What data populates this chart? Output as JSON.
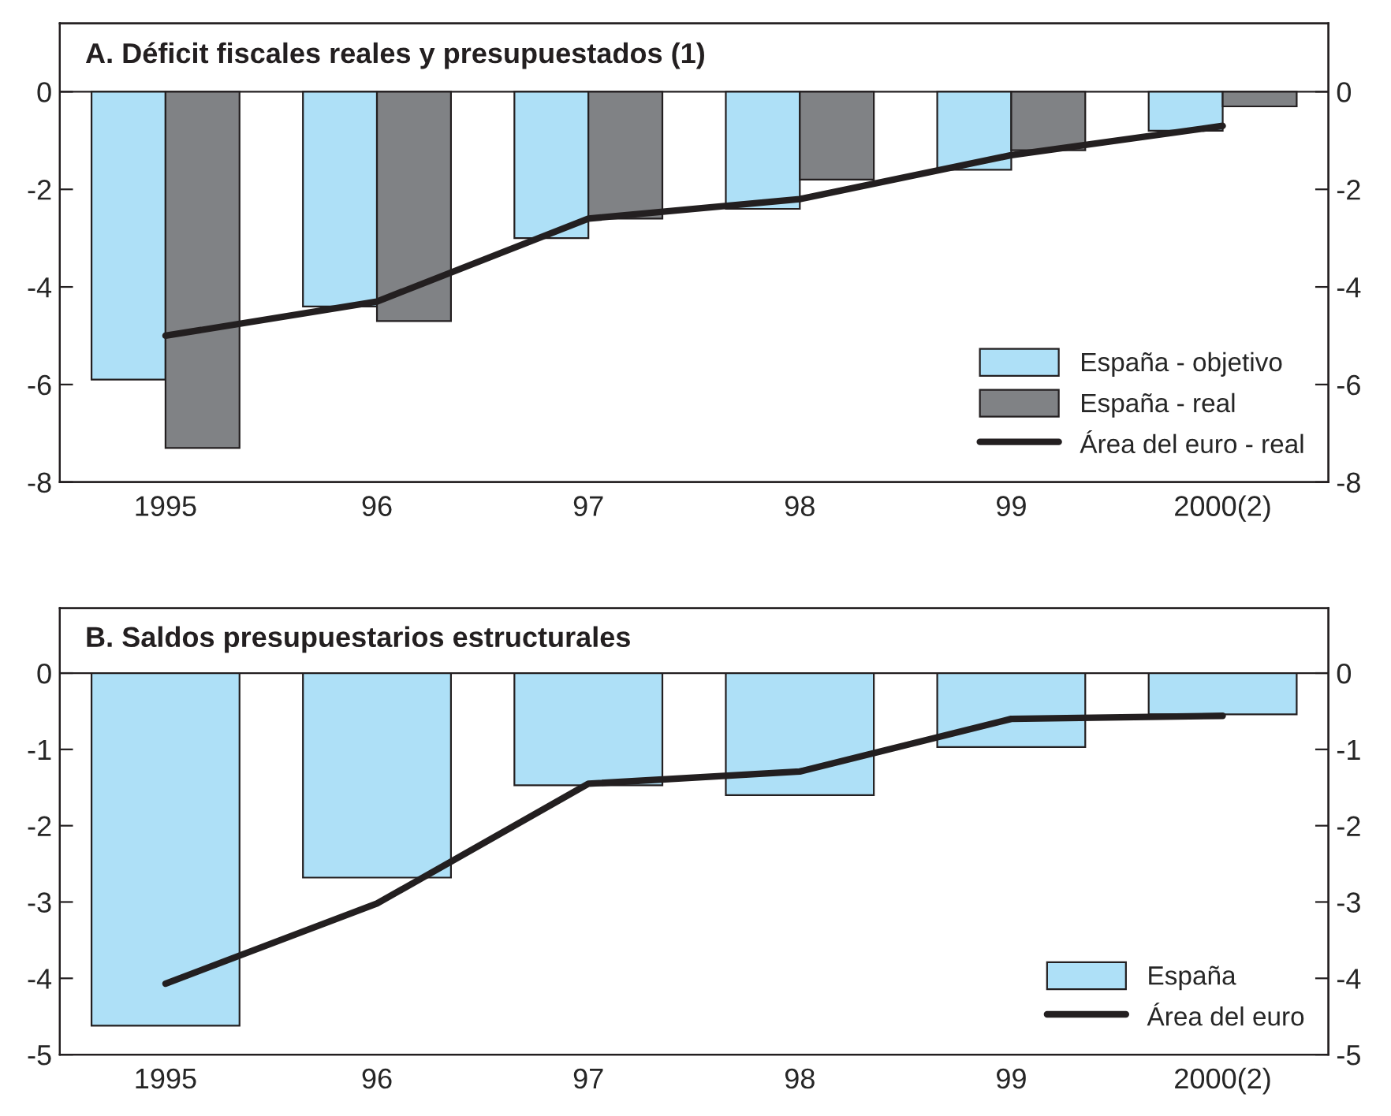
{
  "chart_data": [
    {
      "type": "bar",
      "title": "A. Déficit fiscales reales y presupuestados (1)",
      "categories": [
        "1995",
        "96",
        "97",
        "98",
        "99",
        "2000(2)"
      ],
      "series": [
        {
          "name": "España - objetivo",
          "color": "#aee0f7",
          "values": [
            -5.9,
            -4.4,
            -3.0,
            -2.4,
            -1.6,
            -0.8
          ]
        },
        {
          "name": "España - real",
          "color": "#808285",
          "values": [
            -7.3,
            -4.7,
            -2.6,
            -1.8,
            -1.2,
            -0.3
          ]
        },
        {
          "name": "Área del euro - real",
          "type": "line",
          "color": "#231f20",
          "values": [
            -5.0,
            -4.3,
            -2.6,
            -2.2,
            -1.3,
            -0.7
          ]
        }
      ],
      "ylim": [
        -8,
        1.4
      ],
      "yticks": [
        -8,
        -6,
        -4,
        -2,
        0
      ],
      "y2lim": [
        -8,
        1.4
      ],
      "y2ticks": [
        -8,
        -6,
        -4,
        -2,
        0
      ],
      "legend": "bottom right",
      "ref_lines": [
        {
          "axis": "y",
          "value": 0,
          "color": "#231f20"
        }
      ]
    },
    {
      "type": "bar",
      "title": "B. Saldos presupuestarios estructurales",
      "categories": [
        "1995",
        "96",
        "97",
        "98",
        "99",
        "2000(2)"
      ],
      "series": [
        {
          "name": "España",
          "color": "#aee0f7",
          "values": [
            -4.62,
            -2.68,
            -1.47,
            -1.6,
            -0.97,
            -0.54
          ]
        },
        {
          "name": "Área del euro",
          "type": "line",
          "color": "#231f20",
          "values": [
            -4.07,
            -3.02,
            -1.45,
            -1.29,
            -0.6,
            -0.56
          ]
        }
      ],
      "ylim": [
        -5,
        0.85
      ],
      "yticks": [
        -5,
        -4,
        -3,
        -2,
        -1,
        0
      ],
      "y2lim": [
        -5,
        0.85
      ],
      "y2ticks": [
        -5,
        -4,
        -3,
        -2,
        -1,
        0
      ],
      "legend": "bottom right",
      "ref_lines": [
        {
          "axis": "y",
          "value": 0,
          "color": "#231f20"
        }
      ]
    }
  ]
}
